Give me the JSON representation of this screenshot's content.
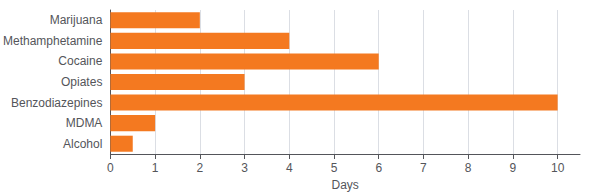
{
  "chart_data": {
    "type": "bar",
    "orientation": "horizontal",
    "categories": [
      "Marijuana",
      "Methamphetamine",
      "Cocaine",
      "Opiates",
      "Benzodiazepines",
      "MDMA",
      "Alcohol"
    ],
    "values": [
      2,
      4,
      6,
      3,
      10,
      1,
      0.5
    ],
    "color": "#F47920",
    "xlabel": "Days",
    "xlim": [
      0,
      10.5
    ],
    "xticks": [
      0,
      1,
      2,
      3,
      4,
      5,
      6,
      7,
      8,
      9,
      10
    ],
    "grid": true
  }
}
